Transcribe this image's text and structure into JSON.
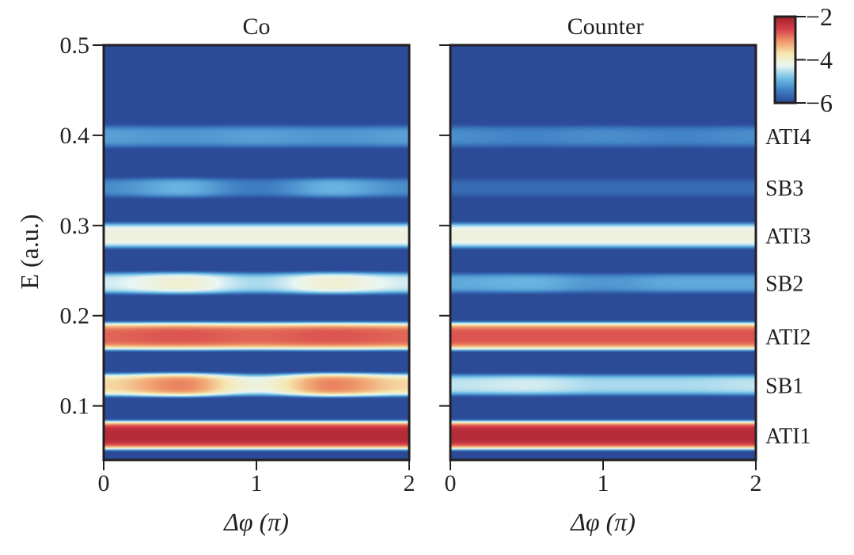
{
  "chart_data": {
    "type": "heatmap",
    "panels": [
      {
        "title": "Co"
      },
      {
        "title": "Counter"
      }
    ],
    "xlabel": "Δφ (π)",
    "ylabel": "E (a.u.)",
    "xlim": [
      0,
      2
    ],
    "ylim": [
      0.04,
      0.5
    ],
    "xticks": [
      "0",
      "1",
      "2"
    ],
    "yticks": [
      "0.1",
      "0.2",
      "0.3",
      "0.4",
      "0.5"
    ],
    "colorbar": {
      "ticks": [
        "−2",
        "−4",
        "−6"
      ],
      "range": [
        -6,
        -2
      ],
      "scale": "log10"
    },
    "colormap": [
      "#2b4a97",
      "#3f7fc4",
      "#70c0e6",
      "#eaf6f4",
      "#f6e8b0",
      "#ef9a6a",
      "#d6404a",
      "#a3212e"
    ],
    "background_value": -6,
    "phi_samples": [
      0,
      0.5,
      1,
      1.5,
      2
    ],
    "bands": [
      {
        "label": "ATI1",
        "E": 0.067,
        "co": [
          -2.2,
          -2.2,
          -2.2,
          -2.2,
          -2.2
        ],
        "counter": [
          -2.2,
          -2.2,
          -2.2,
          -2.2,
          -2.2
        ]
      },
      {
        "label": "SB1",
        "E": 0.123,
        "co": [
          -3.6,
          -3.0,
          -4.1,
          -3.0,
          -3.6
        ],
        "counter": [
          -4.5,
          -4.4,
          -4.6,
          -4.6,
          -4.5
        ]
      },
      {
        "label": "ATI2",
        "E": 0.177,
        "co": [
          -2.8,
          -2.7,
          -2.8,
          -2.7,
          -2.8
        ],
        "counter": [
          -2.7,
          -2.7,
          -2.7,
          -2.7,
          -2.7
        ]
      },
      {
        "label": "SB2",
        "E": 0.236,
        "co": [
          -4.4,
          -4.0,
          -4.6,
          -4.0,
          -4.4
        ],
        "counter": [
          -5.1,
          -5.0,
          -5.3,
          -5.1,
          -5.1
        ]
      },
      {
        "label": "ATI3",
        "E": 0.289,
        "co": [
          -4.1,
          -4.1,
          -4.1,
          -4.1,
          -4.1
        ],
        "counter": [
          -4.1,
          -4.1,
          -4.1,
          -4.1,
          -4.1
        ]
      },
      {
        "label": "SB3",
        "E": 0.342,
        "co": [
          -5.4,
          -5.0,
          -5.6,
          -5.0,
          -5.4
        ],
        "counter": [
          -5.9,
          -5.9,
          -5.9,
          -5.9,
          -5.9
        ]
      },
      {
        "label": "ATI4",
        "E": 0.399,
        "co": [
          -5.2,
          -5.3,
          -5.2,
          -5.3,
          -5.2
        ],
        "counter": [
          -5.4,
          -5.5,
          -5.4,
          -5.5,
          -5.4
        ]
      }
    ]
  }
}
